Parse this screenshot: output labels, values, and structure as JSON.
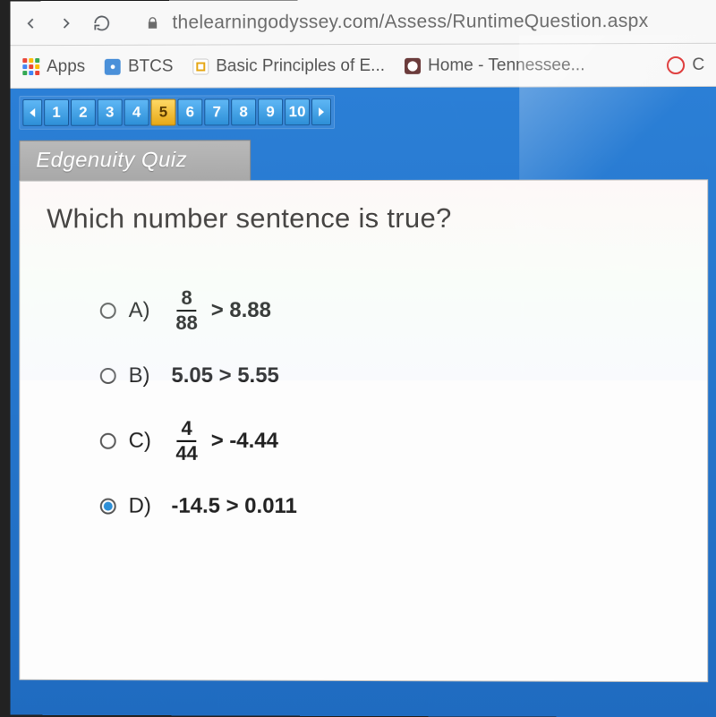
{
  "browser": {
    "url": "thelearningodyssey.com/Assess/RuntimeQuestion.aspx"
  },
  "bookmarks": {
    "apps_label": "Apps",
    "items": [
      {
        "label": "BTCS",
        "icon_bg": "#4a90d9"
      },
      {
        "label": "Basic Principles of E...",
        "icon_bg": "#f0c419"
      },
      {
        "label": "Home - Tennessee...",
        "icon_bg": "#6b3b3b"
      }
    ]
  },
  "pager": {
    "numbers": [
      "1",
      "2",
      "3",
      "4",
      "5",
      "6",
      "7",
      "8",
      "9",
      "10"
    ],
    "active_index": 4
  },
  "quiz": {
    "tab_title": "Edgenuity Quiz",
    "question": "Which number sentence is true?",
    "answers": [
      {
        "letter": "A)",
        "is_fraction": true,
        "frac_num": "8",
        "frac_den": "88",
        "rest": "> 8.88",
        "selected": false
      },
      {
        "letter": "B)",
        "is_fraction": false,
        "text": "5.05 > 5.55",
        "selected": false
      },
      {
        "letter": "C)",
        "is_fraction": true,
        "frac_num": "4",
        "frac_den": "44",
        "rest": "> -4.44",
        "selected": false
      },
      {
        "letter": "D)",
        "is_fraction": false,
        "text": "-14.5 > 0.011",
        "selected": true
      }
    ]
  },
  "colors": {
    "content_bg_top": "#2b7fd6",
    "content_bg_bottom": "#1f6bc0",
    "pager_active_bg": "#e6a817"
  }
}
